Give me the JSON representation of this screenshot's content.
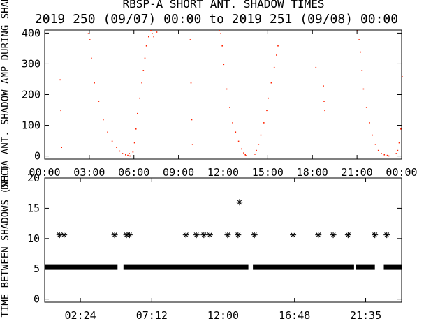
{
  "figure": {
    "title": "RBSP-A SHORT ANT. SHADOW TIMES",
    "subtitle": "2019 250 (09/07) 00:00 to 2019 251 (09/08) 00:00"
  },
  "colors": {
    "top_points": "#ff2200",
    "bottom_points": "#000000",
    "axis": "#000000"
  },
  "chart_data": [
    {
      "type": "scatter",
      "ylabel": "DELTA ANT. SHADOW AMP DURING SHADOWS",
      "xlabel": "",
      "x_unit": "hours",
      "xlim": [
        0,
        24
      ],
      "ylim": [
        -10,
        410
      ],
      "xticks": [
        0,
        3,
        6,
        9,
        12,
        15,
        18,
        21,
        24
      ],
      "xtick_labels": [
        "00:00",
        "03:00",
        "06:00",
        "09:00",
        "12:00",
        "15:00",
        "18:00",
        "21:00",
        "00:00"
      ],
      "yticks": [
        0,
        100,
        200,
        300,
        400
      ],
      "ytick_labels": [
        "0",
        "100",
        "200",
        "300",
        "400"
      ],
      "series": [
        {
          "values_description": "red dots",
          "x": [
            1.0,
            1.05,
            1.1,
            2.9,
            3.0,
            3.1,
            3.3,
            3.6,
            3.9,
            4.2,
            4.5,
            4.8,
            5.0,
            5.2,
            5.4,
            5.55,
            5.65,
            5.7,
            5.9,
            6.0,
            6.1,
            6.2,
            6.35,
            6.5,
            6.6,
            6.7,
            6.8,
            6.95,
            7.1,
            7.2,
            7.3,
            7.5,
            9.75,
            9.8,
            9.85,
            9.9,
            11.7,
            11.8,
            11.9,
            12.0,
            12.2,
            12.4,
            12.6,
            12.8,
            13.0,
            13.2,
            13.35,
            13.45,
            13.5,
            14.1,
            14.2,
            14.35,
            14.5,
            14.7,
            14.9,
            15.0,
            15.2,
            15.4,
            15.55,
            15.65,
            18.2,
            18.7,
            18.75,
            18.8,
            21.0,
            21.1,
            21.2,
            21.3,
            21.4,
            21.6,
            21.8,
            22.0,
            22.2,
            22.4,
            22.6,
            22.8,
            23.0,
            23.1,
            23.6,
            23.7,
            23.8,
            23.9,
            24.0
          ],
          "y": [
            250,
            150,
            30,
            400,
            380,
            320,
            240,
            180,
            120,
            80,
            50,
            30,
            18,
            10,
            6,
            4,
            10,
            2,
            15,
            45,
            90,
            140,
            190,
            240,
            280,
            320,
            360,
            390,
            410,
            400,
            390,
            405,
            380,
            240,
            120,
            40,
            410,
            400,
            360,
            300,
            220,
            160,
            110,
            80,
            50,
            25,
            12,
            6,
            3,
            8,
            20,
            40,
            70,
            110,
            150,
            190,
            240,
            290,
            330,
            360,
            290,
            230,
            180,
            150,
            410,
            380,
            340,
            280,
            220,
            160,
            110,
            70,
            40,
            20,
            10,
            6,
            4,
            2,
            10,
            20,
            45,
            90,
            260
          ]
        }
      ]
    },
    {
      "type": "scatter",
      "ylabel": "TIME BETWEEN SHADOWS (SEC)",
      "xlabel": "",
      "x_unit": "hours",
      "xlim": [
        0,
        24
      ],
      "ylim": [
        -0.5,
        20
      ],
      "xticks": [
        2.4,
        7.2,
        12.0,
        16.8,
        21.583
      ],
      "xtick_labels": [
        "02:24",
        "07:12",
        "12:00",
        "16:48",
        "21:35"
      ],
      "yticks": [
        0,
        5,
        10,
        15,
        20
      ],
      "ytick_labels": [
        "0",
        "5",
        "10",
        "15",
        "20"
      ],
      "marker": "asterisk",
      "series": [
        {
          "values_description": "black asterisks",
          "x": [
            1.0,
            1.3,
            4.7,
            5.5,
            5.7,
            9.5,
            10.2,
            10.7,
            11.1,
            12.3,
            13.0,
            13.1,
            14.1,
            16.7,
            18.4,
            19.4,
            20.4,
            22.2,
            23.0
          ],
          "y": [
            10.6,
            10.6,
            10.6,
            10.6,
            10.6,
            10.6,
            10.6,
            10.6,
            10.6,
            10.6,
            10.6,
            16.0,
            10.6,
            10.6,
            10.6,
            10.6,
            10.6,
            10.6,
            10.6
          ]
        },
        {
          "values_description": "continuous band",
          "x_ranges": [
            [
              0,
              4.9
            ],
            [
              5.3,
              13.7
            ],
            [
              14.0,
              20.8
            ],
            [
              20.9,
              22.2
            ],
            [
              22.8,
              24
            ]
          ],
          "y": 5.3
        }
      ]
    }
  ]
}
